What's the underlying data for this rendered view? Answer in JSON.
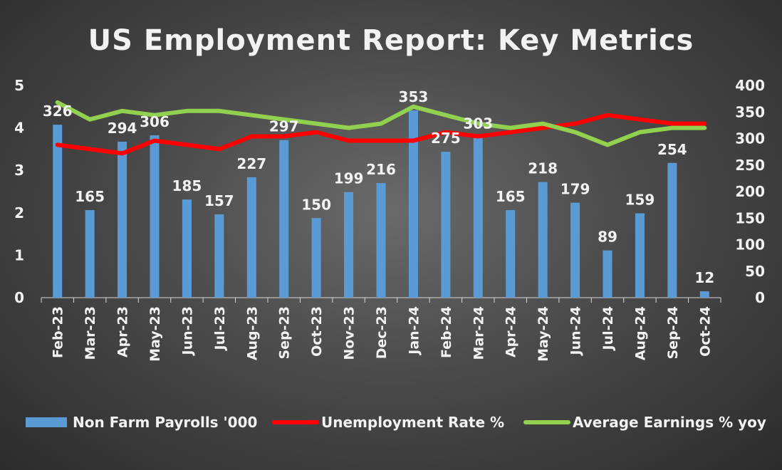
{
  "chart_data": {
    "type": "bar",
    "title": "US Employment Report: Key Metrics",
    "categories": [
      "Feb-23",
      "Mar-23",
      "Apr-23",
      "May-23",
      "Jun-23",
      "Jul-23",
      "Aug-23",
      "Sep-23",
      "Oct-23",
      "Nov-23",
      "Dec-23",
      "Jan-24",
      "Feb-24",
      "Mar-24",
      "Apr-24",
      "May-24",
      "Jun-24",
      "Jul-24",
      "Aug-24",
      "Sep-24",
      "Oct-24"
    ],
    "left_axis": {
      "ylim": [
        0,
        5
      ],
      "ticks": [
        "0",
        "1",
        "2",
        "3",
        "4",
        "5"
      ]
    },
    "right_axis": {
      "ylim": [
        0,
        400
      ],
      "ticks": [
        "0",
        "50",
        "100",
        "150",
        "200",
        "250",
        "300",
        "350",
        "400"
      ]
    },
    "series": [
      {
        "name": "Non Farm Payrolls '000",
        "type": "bar",
        "axis": "right",
        "color": "#5b9bd5",
        "values": [
          326,
          165,
          294,
          306,
          185,
          157,
          227,
          297,
          150,
          199,
          216,
          353,
          275,
          303,
          165,
          218,
          179,
          89,
          159,
          254,
          12
        ],
        "labels": [
          "326",
          "165",
          "294",
          "306",
          "185",
          "157",
          "227",
          "297",
          "150",
          "199",
          "216",
          "353",
          "275",
          "303",
          "165",
          "218",
          "179",
          "89",
          "159",
          "254",
          "12"
        ]
      },
      {
        "name": "Unemployment Rate %",
        "type": "line",
        "axis": "left",
        "color": "#ff0000",
        "values": [
          3.6,
          3.5,
          3.4,
          3.7,
          3.6,
          3.5,
          3.8,
          3.8,
          3.9,
          3.7,
          3.7,
          3.7,
          3.9,
          3.8,
          3.9,
          4.0,
          4.1,
          4.3,
          4.2,
          4.1,
          4.1
        ]
      },
      {
        "name": "Average Earnings % yoy",
        "type": "line",
        "axis": "left",
        "color": "#92d050",
        "values": [
          4.6,
          4.2,
          4.4,
          4.3,
          4.4,
          4.4,
          4.3,
          4.2,
          4.1,
          4.0,
          4.1,
          4.5,
          4.3,
          4.1,
          4.0,
          4.1,
          3.9,
          3.6,
          3.9,
          4.0,
          4.0
        ]
      }
    ],
    "grid": false,
    "legend_position": "bottom"
  }
}
